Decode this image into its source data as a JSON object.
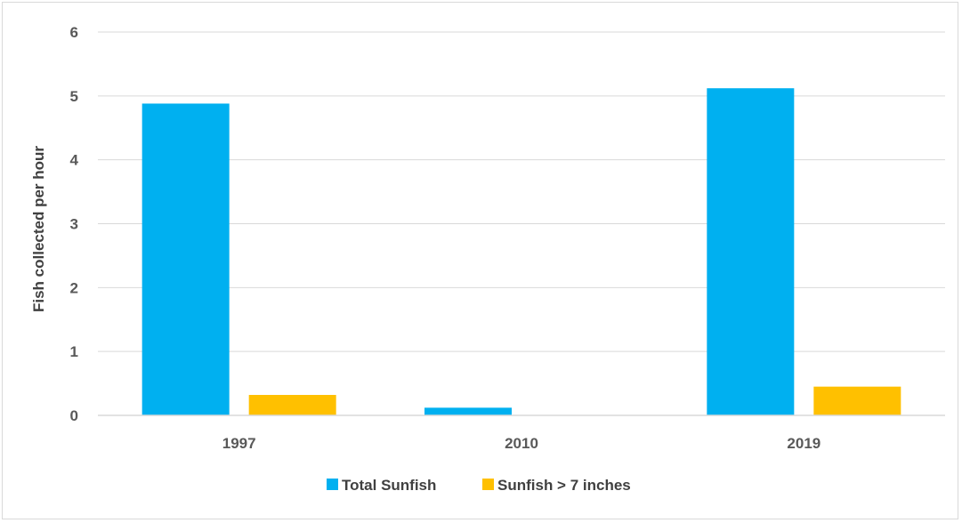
{
  "chart_data": {
    "type": "bar",
    "title": "",
    "xlabel": "",
    "ylabel": "Fish collected per hour",
    "ylim": [
      0,
      6
    ],
    "yticks": [
      0,
      1,
      2,
      3,
      4,
      5,
      6
    ],
    "categories": [
      "1997",
      "2010",
      "2019"
    ],
    "series": [
      {
        "name": "Total Sunfish",
        "color": "#00b0f0",
        "values": [
          4.88,
          0.12,
          5.12
        ]
      },
      {
        "name": "Sunfish > 7 inches",
        "color": "#ffc000",
        "values": [
          0.32,
          0.0,
          0.45
        ]
      }
    ],
    "grid": true,
    "legend_position": "bottom"
  }
}
